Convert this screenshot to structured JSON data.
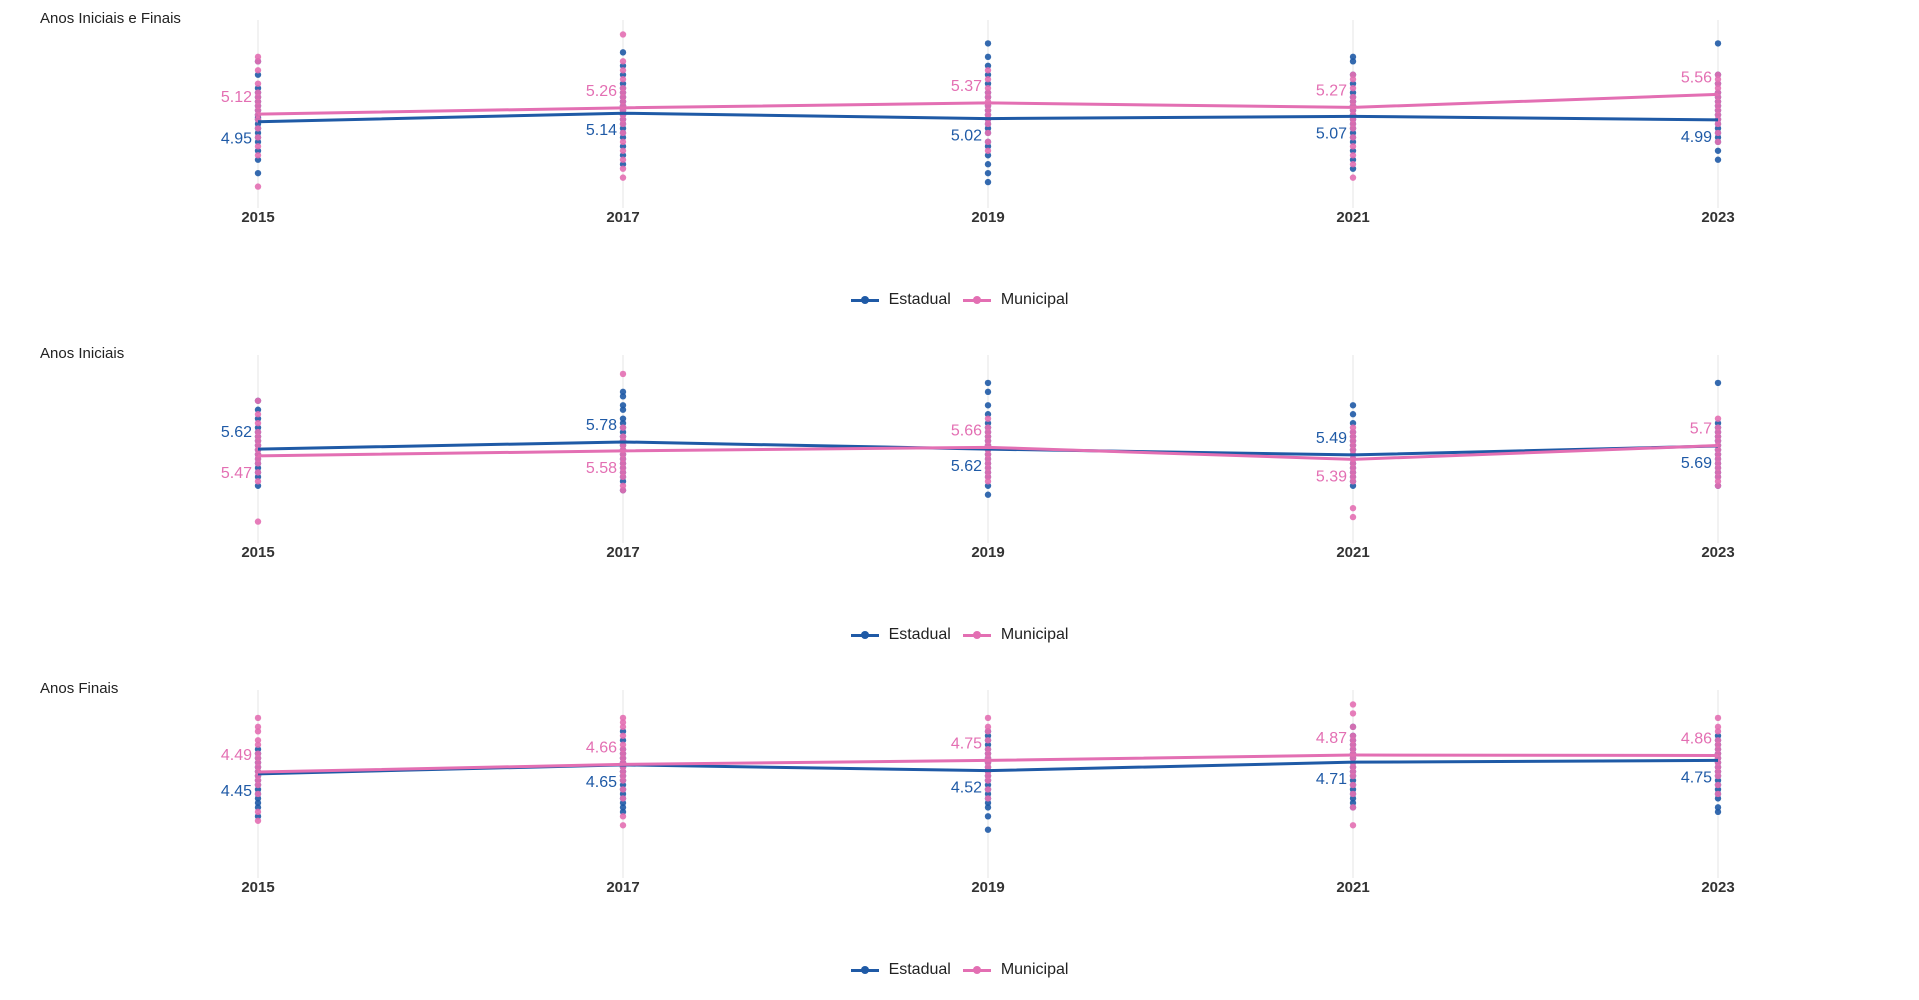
{
  "colors": {
    "estadual": "#1f5aa6",
    "municipal": "#e36fb3",
    "grid": "#e6e6e6"
  },
  "chart_data": [
    {
      "type": "line",
      "title": "Anos Iniciais e Finais",
      "x": [
        "2015",
        "2017",
        "2019",
        "2021",
        "2023"
      ],
      "series": [
        {
          "name": "Estadual",
          "values": [
            4.95,
            5.14,
            5.02,
            5.07,
            4.99
          ]
        },
        {
          "name": "Municipal",
          "values": [
            5.12,
            5.26,
            5.37,
            5.27,
            5.56
          ]
        }
      ],
      "value_labels": {
        "Estadual": [
          "4.95",
          "5.14",
          "5.02",
          "5.07",
          "4.99"
        ],
        "Municipal": [
          "5.12",
          "5.26",
          "5.37",
          "5.27",
          "5.56"
        ]
      },
      "ylim": [
        3.2,
        7.0
      ],
      "grid": "vertical",
      "legend": "bottom",
      "points": {
        "Estadual": [
          [
            3.8,
            4.1,
            4.3,
            4.5,
            4.6,
            4.7,
            4.8,
            4.9,
            5.0,
            5.05,
            5.1,
            5.2,
            5.3,
            5.4,
            5.5,
            5.6,
            5.7,
            6.0,
            6.3
          ],
          [
            4.0,
            4.2,
            4.4,
            4.6,
            4.7,
            4.8,
            4.9,
            5.0,
            5.1,
            5.2,
            5.3,
            5.4,
            5.5,
            5.6,
            5.7,
            5.8,
            6.0,
            6.2,
            6.5
          ],
          [
            3.6,
            3.8,
            4.0,
            4.2,
            4.4,
            4.5,
            4.7,
            4.8,
            4.9,
            5.0,
            5.1,
            5.2,
            5.3,
            5.5,
            5.6,
            5.8,
            6.0,
            6.2,
            6.4,
            6.7
          ],
          [
            3.9,
            4.1,
            4.3,
            4.5,
            4.6,
            4.7,
            4.8,
            4.9,
            5.0,
            5.1,
            5.2,
            5.3,
            5.4,
            5.5,
            5.6,
            5.8,
            6.0,
            6.3,
            6.4
          ],
          [
            4.1,
            4.3,
            4.5,
            4.6,
            4.7,
            4.8,
            4.9,
            5.0,
            5.1,
            5.2,
            5.3,
            5.4,
            5.5,
            5.6,
            5.8,
            6.0,
            6.7
          ]
        ],
        "Municipal": [
          [
            3.5,
            4.2,
            4.4,
            4.6,
            4.8,
            5.0,
            5.1,
            5.2,
            5.3,
            5.4,
            5.5,
            5.6,
            5.8,
            6.1,
            6.3,
            6.4
          ],
          [
            3.7,
            3.9,
            4.1,
            4.3,
            4.5,
            4.7,
            4.9,
            5.0,
            5.1,
            5.2,
            5.3,
            5.4,
            5.5,
            5.6,
            5.7,
            5.9,
            6.1,
            6.3,
            6.9
          ],
          [
            4.3,
            4.5,
            4.7,
            4.9,
            5.0,
            5.1,
            5.2,
            5.3,
            5.4,
            5.5,
            5.6,
            5.7,
            5.9,
            6.1
          ],
          [
            3.7,
            4.0,
            4.2,
            4.4,
            4.6,
            4.8,
            4.9,
            5.0,
            5.1,
            5.2,
            5.3,
            5.4,
            5.5,
            5.7,
            5.9,
            6.0
          ],
          [
            4.5,
            4.7,
            4.9,
            5.0,
            5.1,
            5.2,
            5.3,
            5.4,
            5.5,
            5.6,
            5.7,
            5.8,
            5.9,
            6.0
          ]
        ]
      }
    },
    {
      "type": "line",
      "title": "Anos Iniciais",
      "x": [
        "2015",
        "2017",
        "2019",
        "2021",
        "2023"
      ],
      "series": [
        {
          "name": "Estadual",
          "values": [
            5.62,
            5.78,
            5.62,
            5.49,
            5.69
          ]
        },
        {
          "name": "Municipal",
          "values": [
            5.47,
            5.58,
            5.66,
            5.39,
            5.7
          ]
        }
      ],
      "value_labels": {
        "Estadual": [
          "5.62",
          "5.78",
          "5.62",
          "5.49",
          "5.69"
        ],
        "Municipal": [
          "5.47",
          "5.58",
          "5.66",
          "5.39",
          "5.7"
        ]
      },
      "ylim": [
        3.7,
        7.5
      ],
      "grid": "vertical",
      "legend": "bottom",
      "points": {
        "Estadual": [
          [
            4.8,
            5.0,
            5.1,
            5.2,
            5.3,
            5.4,
            5.5,
            5.6,
            5.7,
            5.8,
            5.9,
            6.0,
            6.1,
            6.3,
            6.5,
            6.7
          ],
          [
            4.7,
            4.9,
            5.0,
            5.1,
            5.2,
            5.3,
            5.4,
            5.5,
            5.6,
            5.7,
            5.8,
            5.9,
            6.0,
            6.1,
            6.2,
            6.3,
            6.5,
            6.6,
            6.8,
            6.9
          ],
          [
            4.6,
            4.8,
            5.0,
            5.1,
            5.2,
            5.3,
            5.4,
            5.5,
            5.6,
            5.7,
            5.8,
            5.9,
            6.0,
            6.1,
            6.2,
            6.4,
            6.6,
            6.9,
            7.1
          ],
          [
            4.8,
            4.9,
            5.0,
            5.1,
            5.2,
            5.3,
            5.4,
            5.5,
            5.6,
            5.7,
            5.8,
            5.9,
            6.0,
            6.2,
            6.4,
            6.6
          ],
          [
            4.8,
            5.0,
            5.1,
            5.2,
            5.3,
            5.4,
            5.5,
            5.6,
            5.7,
            5.8,
            5.9,
            6.0,
            6.1,
            6.2,
            7.1
          ]
        ],
        "Municipal": [
          [
            4.0,
            4.9,
            5.1,
            5.3,
            5.4,
            5.5,
            5.6,
            5.7,
            5.8,
            5.9,
            6.0,
            6.2,
            6.4,
            6.7
          ],
          [
            4.7,
            4.8,
            5.0,
            5.1,
            5.2,
            5.3,
            5.4,
            5.5,
            5.6,
            5.7,
            5.8,
            5.9,
            6.1,
            7.3
          ],
          [
            4.9,
            5.0,
            5.1,
            5.2,
            5.3,
            5.4,
            5.5,
            5.6,
            5.7,
            5.8,
            5.9,
            6.0,
            6.1,
            6.3
          ],
          [
            4.1,
            4.3,
            4.9,
            5.0,
            5.1,
            5.2,
            5.3,
            5.4,
            5.5,
            5.6,
            5.7,
            5.8,
            5.9,
            6.0,
            6.1
          ],
          [
            4.8,
            4.9,
            5.0,
            5.1,
            5.2,
            5.3,
            5.4,
            5.5,
            5.6,
            5.7,
            5.8,
            5.9,
            6.0,
            6.1,
            6.3
          ]
        ]
      }
    },
    {
      "type": "line",
      "title": "Anos Finais",
      "x": [
        "2015",
        "2017",
        "2019",
        "2021",
        "2023"
      ],
      "series": [
        {
          "name": "Estadual",
          "values": [
            4.45,
            4.65,
            4.52,
            4.71,
            4.75
          ]
        },
        {
          "name": "Municipal",
          "values": [
            4.49,
            4.66,
            4.75,
            4.87,
            4.86
          ]
        }
      ],
      "value_labels": {
        "Estadual": [
          "4.45",
          "4.65",
          "4.52",
          "4.71",
          "4.75"
        ],
        "Municipal": [
          "4.49",
          "4.66",
          "4.75",
          "4.87",
          "4.86"
        ]
      },
      "ylim": [
        2.3,
        6.1
      ],
      "grid": "vertical",
      "legend": "bottom",
      "points": {
        "Estadual": [
          [
            3.5,
            3.7,
            3.8,
            3.9,
            4.0,
            4.1,
            4.2,
            4.3,
            4.4,
            4.5,
            4.6,
            4.7,
            4.8,
            4.9,
            5.0
          ],
          [
            3.6,
            3.7,
            3.8,
            3.9,
            4.0,
            4.1,
            4.2,
            4.3,
            4.4,
            4.5,
            4.6,
            4.7,
            4.8,
            4.9,
            5.0,
            5.2,
            5.4
          ],
          [
            3.2,
            3.5,
            3.7,
            3.8,
            3.9,
            4.0,
            4.1,
            4.2,
            4.3,
            4.4,
            4.5,
            4.6,
            4.7,
            4.8,
            4.9,
            5.0,
            5.1,
            5.2,
            5.3,
            5.4
          ],
          [
            3.7,
            3.8,
            3.9,
            4.0,
            4.1,
            4.2,
            4.3,
            4.4,
            4.5,
            4.6,
            4.7,
            4.8,
            4.9,
            5.0,
            5.1,
            5.2,
            5.3,
            5.5
          ],
          [
            3.6,
            3.7,
            3.9,
            4.0,
            4.1,
            4.2,
            4.3,
            4.4,
            4.5,
            4.6,
            4.7,
            4.8,
            4.9,
            5.0,
            5.1,
            5.2,
            5.3
          ]
        ],
        "Municipal": [
          [
            3.4,
            3.6,
            4.0,
            4.2,
            4.3,
            4.4,
            4.5,
            4.6,
            4.7,
            4.8,
            4.9,
            5.1,
            5.2,
            5.4,
            5.5,
            5.7
          ],
          [
            3.3,
            3.5,
            3.9,
            4.1,
            4.3,
            4.4,
            4.5,
            4.6,
            4.7,
            4.8,
            4.9,
            5.0,
            5.1,
            5.3,
            5.5,
            5.6,
            5.7
          ],
          [
            3.9,
            4.1,
            4.3,
            4.4,
            4.5,
            4.6,
            4.7,
            4.8,
            4.9,
            5.0,
            5.2,
            5.4,
            5.5,
            5.7
          ],
          [
            3.3,
            3.7,
            4.0,
            4.2,
            4.4,
            4.5,
            4.6,
            4.7,
            4.8,
            4.9,
            5.0,
            5.1,
            5.2,
            5.3,
            5.5,
            5.8,
            6.0
          ],
          [
            4.0,
            4.2,
            4.4,
            4.5,
            4.6,
            4.7,
            4.8,
            4.9,
            5.0,
            5.1,
            5.2,
            5.4,
            5.5,
            5.7
          ]
        ]
      }
    }
  ]
}
